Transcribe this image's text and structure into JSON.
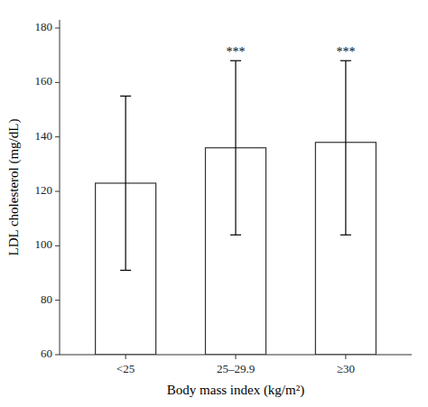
{
  "chart_data": {
    "type": "bar",
    "categories": [
      "<25",
      "25–29.9",
      "≥30"
    ],
    "values": [
      123,
      136,
      138
    ],
    "error_upper": [
      32,
      32,
      30
    ],
    "error_lower": [
      32,
      32,
      34
    ],
    "significance": [
      null,
      "***",
      "***"
    ],
    "xlabel": "Body mass index (kg/m²)",
    "ylabel": "LDL cholesterol (mg/dL)",
    "ylim": [
      60,
      183
    ],
    "yticks": [
      60,
      80,
      100,
      120,
      140,
      160,
      180
    ],
    "color": "white",
    "grid": false
  }
}
